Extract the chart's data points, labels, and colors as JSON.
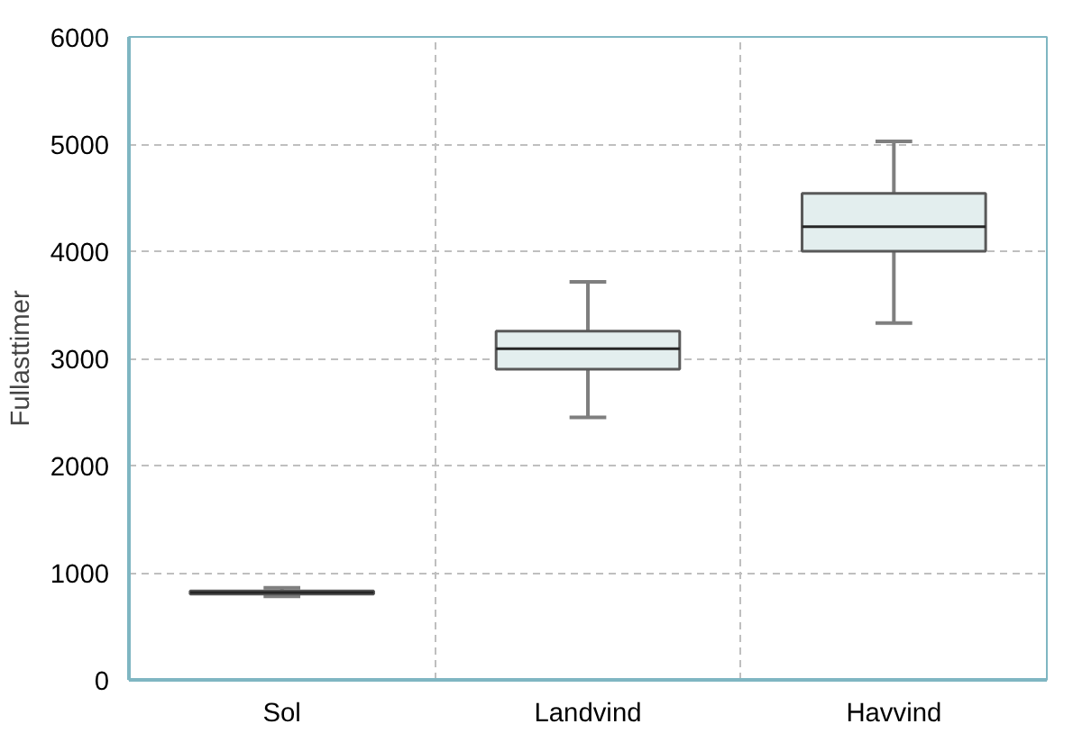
{
  "chart_data": {
    "type": "box",
    "ylabel": "Fullasttimer",
    "categories": [
      "Sol",
      "Landvind",
      "Havvind"
    ],
    "boxes": [
      {
        "low": 780,
        "q1": 800,
        "median": 815,
        "q3": 830,
        "high": 860
      },
      {
        "low": 2450,
        "q1": 2900,
        "median": 3090,
        "q3": 3255,
        "high": 3715
      },
      {
        "low": 3330,
        "q1": 4000,
        "median": 4230,
        "q3": 4540,
        "high": 5025
      }
    ],
    "color": "#e3eeee",
    "ylim": [
      0,
      6000
    ],
    "yticks": [
      0,
      1000,
      2000,
      3000,
      4000,
      5000,
      6000
    ],
    "grid": true
  }
}
